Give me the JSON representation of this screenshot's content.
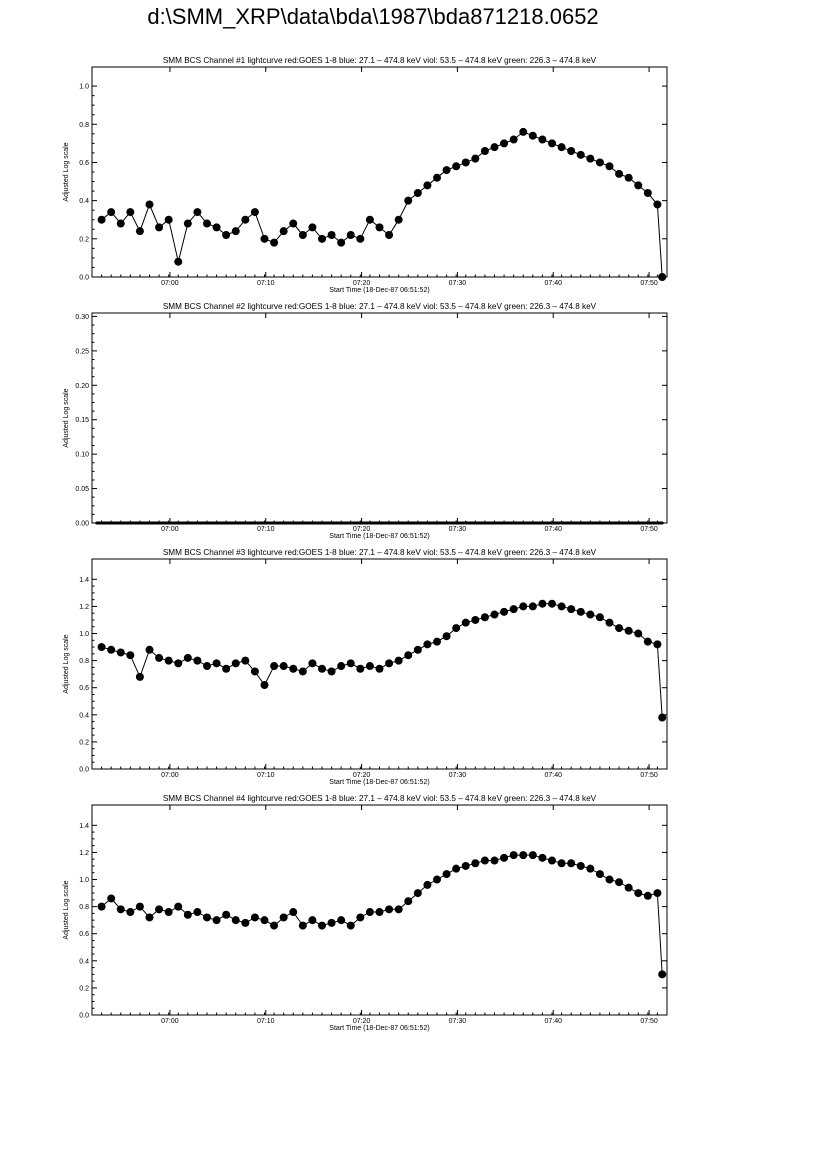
{
  "page_title": "d:\\SMM_XRP\\data\\bda\\1987\\bda871218.0652",
  "colors": {
    "series": "#000000",
    "axes": "#000000",
    "background": "#ffffff"
  },
  "chart_data": [
    {
      "type": "scatter",
      "title": "SMM BCS Channel #1 lightcurve  red:GOES 1-8  blue: 27.1 – 474.8 keV  viol: 53.5 – 474.8 keV  green: 226.3 – 474.8 keV",
      "xlabel": "Start Time (18-Dec-87 06:51:52)",
      "ylabel": "Adjusted Log scale",
      "x_tick_labels": [
        "07:00",
        "07:10",
        "07:20",
        "07:30",
        "07:40",
        "07:50"
      ],
      "x_tick_minutes": [
        8.13,
        18.13,
        28.13,
        38.13,
        48.13,
        58.13
      ],
      "xlim_minutes": [
        0,
        60
      ],
      "ylim": [
        0,
        1.1
      ],
      "y_ticks": [
        0.0,
        0.2,
        0.4,
        0.6,
        0.8,
        1.0
      ],
      "y_tick_labels": [
        "0.0",
        "0.2",
        "0.4",
        "0.6",
        "0.8",
        "1.0"
      ],
      "grid": false,
      "x": [
        1.0,
        2.0,
        3.0,
        4.0,
        5.0,
        6.0,
        7.0,
        8.0,
        9.0,
        10.0,
        11.0,
        12.0,
        13.0,
        14.0,
        15.0,
        16.0,
        17.0,
        18.0,
        19.0,
        20.0,
        21.0,
        22.0,
        23.0,
        24.0,
        25.0,
        26.0,
        27.0,
        28.0,
        29.0,
        30.0,
        31.0,
        32.0,
        33.0,
        34.0,
        35.0,
        36.0,
        37.0,
        38.0,
        39.0,
        40.0,
        41.0,
        42.0,
        43.0,
        44.0,
        45.0,
        46.0,
        47.0,
        48.0,
        49.0,
        50.0,
        51.0,
        52.0,
        53.0,
        54.0,
        55.0,
        56.0,
        57.0,
        58.0,
        59.0,
        59.5
      ],
      "y": [
        0.3,
        0.34,
        0.28,
        0.34,
        0.24,
        0.38,
        0.26,
        0.3,
        0.08,
        0.28,
        0.34,
        0.28,
        0.26,
        0.22,
        0.24,
        0.3,
        0.34,
        0.2,
        0.18,
        0.24,
        0.28,
        0.22,
        0.26,
        0.2,
        0.22,
        0.18,
        0.22,
        0.2,
        0.3,
        0.26,
        0.22,
        0.3,
        0.4,
        0.44,
        0.48,
        0.52,
        0.56,
        0.58,
        0.6,
        0.62,
        0.66,
        0.68,
        0.7,
        0.72,
        0.76,
        0.74,
        0.72,
        0.7,
        0.68,
        0.66,
        0.64,
        0.62,
        0.6,
        0.58,
        0.54,
        0.52,
        0.48,
        0.44,
        0.38,
        0.0
      ]
    },
    {
      "type": "scatter",
      "title": "SMM BCS Channel #2 lightcurve  red:GOES 1-8  blue: 27.1 – 474.8 keV  viol: 53.5 – 474.8 keV  green: 226.3 – 474.8 keV",
      "xlabel": "Start Time (18-Dec-87 06:51:52)",
      "ylabel": "Adjusted Log scale",
      "x_tick_labels": [
        "07:00",
        "07:10",
        "07:20",
        "07:30",
        "07:40",
        "07:50"
      ],
      "x_tick_minutes": [
        8.13,
        18.13,
        28.13,
        38.13,
        48.13,
        58.13
      ],
      "xlim_minutes": [
        0,
        60
      ],
      "ylim": [
        0,
        0.305
      ],
      "y_ticks": [
        0.0,
        0.05,
        0.1,
        0.15,
        0.2,
        0.25,
        0.3
      ],
      "y_tick_labels": [
        "0.00",
        "0.05",
        "0.10",
        "0.15",
        "0.20",
        "0.25",
        "0.30"
      ],
      "grid": false,
      "x": [
        0.5,
        59.5
      ],
      "y": [
        0.0,
        0.0
      ]
    },
    {
      "type": "scatter",
      "title": "SMM BCS Channel #3 lightcurve  red:GOES 1-8  blue: 27.1 – 474.8 keV  viol: 53.5 – 474.8 keV  green: 226.3 – 474.8 keV",
      "xlabel": "Start Time (18-Dec-87 06:51:52)",
      "ylabel": "Adjusted Log scale",
      "x_tick_labels": [
        "07:00",
        "07:10",
        "07:20",
        "07:30",
        "07:40",
        "07:50"
      ],
      "x_tick_minutes": [
        8.13,
        18.13,
        28.13,
        38.13,
        48.13,
        58.13
      ],
      "xlim_minutes": [
        0,
        60
      ],
      "ylim": [
        0,
        1.55
      ],
      "y_ticks": [
        0.0,
        0.2,
        0.4,
        0.6,
        0.8,
        1.0,
        1.2,
        1.4
      ],
      "y_tick_labels": [
        "0.0",
        "0.2",
        "0.4",
        "0.6",
        "0.8",
        "1.0",
        "1.2",
        "1.4"
      ],
      "grid": false,
      "x": [
        1.0,
        2.0,
        3.0,
        4.0,
        5.0,
        6.0,
        7.0,
        8.0,
        9.0,
        10.0,
        11.0,
        12.0,
        13.0,
        14.0,
        15.0,
        16.0,
        17.0,
        18.0,
        19.0,
        20.0,
        21.0,
        22.0,
        23.0,
        24.0,
        25.0,
        26.0,
        27.0,
        28.0,
        29.0,
        30.0,
        31.0,
        32.0,
        33.0,
        34.0,
        35.0,
        36.0,
        37.0,
        38.0,
        39.0,
        40.0,
        41.0,
        42.0,
        43.0,
        44.0,
        45.0,
        46.0,
        47.0,
        48.0,
        49.0,
        50.0,
        51.0,
        52.0,
        53.0,
        54.0,
        55.0,
        56.0,
        57.0,
        58.0,
        59.0,
        59.5
      ],
      "y": [
        0.9,
        0.88,
        0.86,
        0.84,
        0.68,
        0.88,
        0.82,
        0.8,
        0.78,
        0.82,
        0.8,
        0.76,
        0.78,
        0.74,
        0.78,
        0.8,
        0.72,
        0.62,
        0.76,
        0.76,
        0.74,
        0.72,
        0.78,
        0.74,
        0.72,
        0.76,
        0.78,
        0.74,
        0.76,
        0.74,
        0.78,
        0.8,
        0.84,
        0.88,
        0.92,
        0.94,
        0.98,
        1.04,
        1.08,
        1.1,
        1.12,
        1.14,
        1.16,
        1.18,
        1.2,
        1.2,
        1.22,
        1.22,
        1.2,
        1.18,
        1.16,
        1.14,
        1.12,
        1.08,
        1.04,
        1.02,
        1.0,
        0.94,
        0.92,
        0.38
      ]
    },
    {
      "type": "scatter",
      "title": "SMM BCS Channel #4 lightcurve  red:GOES 1-8  blue: 27.1 – 474.8 keV  viol: 53.5 – 474.8 keV  green: 226.3 – 474.8 keV",
      "xlabel": "Start Time (18-Dec-87 06:51:52)",
      "ylabel": "Adjusted Log scale",
      "x_tick_labels": [
        "07:00",
        "07:10",
        "07:20",
        "07:30",
        "07:40",
        "07:50"
      ],
      "x_tick_minutes": [
        8.13,
        18.13,
        28.13,
        38.13,
        48.13,
        58.13
      ],
      "xlim_minutes": [
        0,
        60
      ],
      "ylim": [
        0,
        1.55
      ],
      "y_ticks": [
        0.0,
        0.2,
        0.4,
        0.6,
        0.8,
        1.0,
        1.2,
        1.4
      ],
      "y_tick_labels": [
        "0.0",
        "0.2",
        "0.4",
        "0.6",
        "0.8",
        "1.0",
        "1.2",
        "1.4"
      ],
      "grid": false,
      "x": [
        1.0,
        2.0,
        3.0,
        4.0,
        5.0,
        6.0,
        7.0,
        8.0,
        9.0,
        10.0,
        11.0,
        12.0,
        13.0,
        14.0,
        15.0,
        16.0,
        17.0,
        18.0,
        19.0,
        20.0,
        21.0,
        22.0,
        23.0,
        24.0,
        25.0,
        26.0,
        27.0,
        28.0,
        29.0,
        30.0,
        31.0,
        32.0,
        33.0,
        34.0,
        35.0,
        36.0,
        37.0,
        38.0,
        39.0,
        40.0,
        41.0,
        42.0,
        43.0,
        44.0,
        45.0,
        46.0,
        47.0,
        48.0,
        49.0,
        50.0,
        51.0,
        52.0,
        53.0,
        54.0,
        55.0,
        56.0,
        57.0,
        58.0,
        59.0,
        59.5
      ],
      "y": [
        0.8,
        0.86,
        0.78,
        0.76,
        0.8,
        0.72,
        0.78,
        0.76,
        0.8,
        0.74,
        0.76,
        0.72,
        0.7,
        0.74,
        0.7,
        0.68,
        0.72,
        0.7,
        0.66,
        0.72,
        0.76,
        0.66,
        0.7,
        0.66,
        0.68,
        0.7,
        0.66,
        0.72,
        0.76,
        0.76,
        0.78,
        0.78,
        0.84,
        0.9,
        0.96,
        1.0,
        1.04,
        1.08,
        1.1,
        1.12,
        1.14,
        1.14,
        1.16,
        1.18,
        1.18,
        1.18,
        1.16,
        1.14,
        1.12,
        1.12,
        1.1,
        1.08,
        1.04,
        1.0,
        0.98,
        0.94,
        0.9,
        0.88,
        0.9,
        0.3
      ]
    }
  ]
}
